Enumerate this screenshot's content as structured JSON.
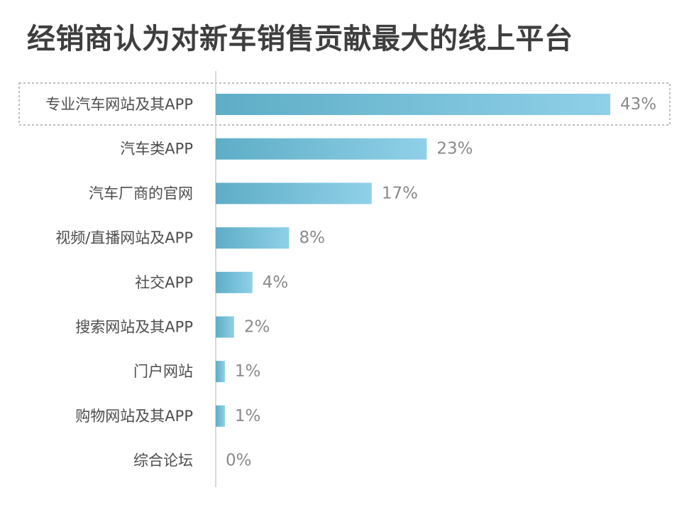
{
  "title": "经销商认为对新车销售贡献最大的线上平台",
  "colors": {
    "bar_left": "#5eadc6",
    "bar_right": "#8fd0e8",
    "axis": "#cccccc",
    "highlight_border": "#a8a8a8"
  },
  "chart_data": {
    "type": "bar",
    "orientation": "horizontal",
    "title": "经销商认为对新车销售贡献最大的线上平台",
    "xlabel": "",
    "ylabel": "",
    "grid": false,
    "unit": "%",
    "xlim": [
      0,
      43
    ],
    "highlighted_category": "专业汽车网站及其APP",
    "categories": [
      "专业汽车网站及其APP",
      "汽车类APP",
      "汽车厂商的官网",
      "视频/直播网站及APP",
      "社交APP",
      "搜索网站及其APP",
      "门户网站",
      "购物网站及其APP",
      "综合论坛"
    ],
    "values": [
      43,
      23,
      17,
      8,
      4,
      2,
      1,
      1,
      0
    ],
    "value_labels": [
      "43%",
      "23%",
      "17%",
      "8%",
      "4%",
      "2%",
      "1%",
      "1%",
      "0%"
    ]
  }
}
